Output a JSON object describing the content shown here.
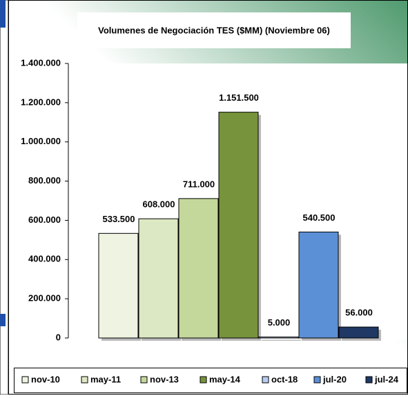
{
  "chart_data": {
    "type": "bar",
    "title": "Volumenes de Negociación TES ($MM) (Noviembre 06)",
    "categories": [
      "nov-10",
      "may-11",
      "nov-13",
      "may-14",
      "oct-18",
      "jul-20",
      "jul-24"
    ],
    "values": [
      533500,
      608000,
      711000,
      1151500,
      5000,
      540500,
      56000
    ],
    "value_labels": [
      "533.500",
      "608.000",
      "711.000",
      "1.151.500",
      "5.000",
      "540.500",
      "56.000"
    ],
    "colors": [
      "#eef4e1",
      "#dce8c3",
      "#c4d89c",
      "#77933c",
      "#b8cdf0",
      "#5b8fd6",
      "#1f3864"
    ],
    "ylim": [
      0,
      1400000
    ],
    "yticks": [
      0,
      {
        "value": 200000,
        "label": "200.000"
      },
      {
        "value": 400000,
        "label": "400.000"
      },
      {
        "value": 600000,
        "label": "600.000"
      },
      {
        "value": 800000,
        "label": "800.000"
      },
      {
        "value": 1000000,
        "label": "1.000.000"
      },
      {
        "value": 1200000,
        "label": "1.200.000"
      },
      {
        "value": 1400000,
        "label": "1.400.000"
      }
    ],
    "legend": "bottom"
  }
}
